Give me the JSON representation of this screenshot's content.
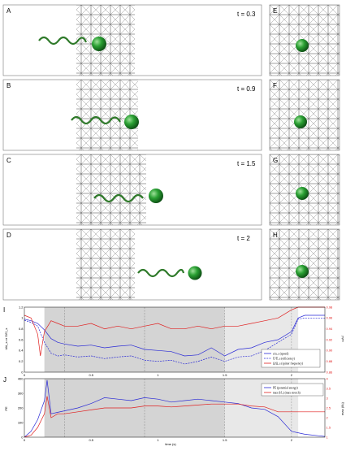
{
  "panels": [
    {
      "label": "A",
      "time": "t = 0.3",
      "head_offset": 0
    },
    {
      "label": "B",
      "time": "t = 0.9",
      "head_offset": 40
    },
    {
      "label": "C",
      "time": "t = 1.5",
      "head_offset": 80
    },
    {
      "label": "D",
      "time": "t = 2",
      "head_offset": 120
    }
  ],
  "zoom_panels": [
    {
      "label": "E"
    },
    {
      "label": "F"
    },
    {
      "label": "G"
    },
    {
      "label": "H"
    }
  ],
  "colors": {
    "sphere": "#1f8a2a",
    "tail": "#2f7a2a",
    "series_blue": "#2a2ad6",
    "series_red": "#e02020",
    "shade": "#d6d6d6",
    "grid": "#555555"
  },
  "chart_I": {
    "label": "I",
    "left_axis_label": "ū/ū_s or Ū/Ū_s",
    "right_axis_label": "ω/ω̄",
    "left_ticks": [
      "0",
      "0.2",
      "0.4",
      "0.6",
      "0.8",
      "1",
      "1.2"
    ],
    "right_ticks": [
      "0.86",
      "0.88",
      "0.90",
      "0.92",
      "0.94",
      "0.96",
      "0.98"
    ],
    "x_ticks": [
      "0",
      "0.5",
      "1",
      "1.5",
      "2"
    ],
    "legend": [
      "u/u_s (speed)",
      "Ū/Ū_s (efficiency)",
      "Ω/Ω_s (spinor frequency)"
    ]
  },
  "chart_J": {
    "label": "J",
    "left_axis_label": "PE",
    "right_axis_label": "max (l/l₀)",
    "left_ticks": [
      "0",
      "100",
      "200",
      "300",
      "400"
    ],
    "right_ticks": [
      "1",
      "1.5",
      "2",
      "2.5",
      "3",
      "3.5",
      "4"
    ],
    "x_ticks": [
      "0",
      "0.5",
      "1",
      "1.5",
      "2"
    ],
    "x_label": "time (s)",
    "legend": [
      "PE (potential energy)",
      "max (l/l₀) (max stretch)"
    ]
  },
  "chart_data": [
    {
      "type": "line",
      "title": "",
      "xlabel": "",
      "ylabel": "ū/ū_s or Ū/Ū_s",
      "xlim": [
        0,
        2.25
      ],
      "ylim": [
        0,
        1.2
      ],
      "y2lim": [
        0.86,
        0.98
      ],
      "shaded_intervals": [
        [
          0.15,
          1.5
        ],
        [
          1.5,
          2.05
        ]
      ],
      "series": [
        {
          "name": "u/u_s (speed)",
          "axis": "left",
          "style": "solid",
          "x": [
            0,
            0.05,
            0.1,
            0.15,
            0.2,
            0.25,
            0.3,
            0.4,
            0.5,
            0.6,
            0.7,
            0.8,
            0.9,
            1.0,
            1.1,
            1.2,
            1.3,
            1.4,
            1.5,
            1.6,
            1.7,
            1.8,
            1.9,
            2.0,
            2.05,
            2.1,
            2.2,
            2.25
          ],
          "y": [
            0.98,
            0.95,
            0.9,
            0.78,
            0.62,
            0.55,
            0.52,
            0.48,
            0.5,
            0.45,
            0.48,
            0.5,
            0.42,
            0.4,
            0.38,
            0.3,
            0.32,
            0.45,
            0.3,
            0.42,
            0.45,
            0.55,
            0.6,
            0.75,
            1.0,
            1.05,
            1.05,
            1.05
          ]
        },
        {
          "name": "Ū/Ū_s (efficiency)",
          "axis": "left",
          "style": "dashed",
          "x": [
            0,
            0.05,
            0.1,
            0.15,
            0.2,
            0.25,
            0.3,
            0.4,
            0.5,
            0.6,
            0.7,
            0.8,
            0.9,
            1.0,
            1.1,
            1.2,
            1.3,
            1.4,
            1.5,
            1.6,
            1.7,
            1.8,
            1.9,
            2.0,
            2.05,
            2.1,
            2.2,
            2.25
          ],
          "y": [
            0.96,
            0.92,
            0.85,
            0.55,
            0.35,
            0.3,
            0.32,
            0.28,
            0.3,
            0.25,
            0.28,
            0.3,
            0.22,
            0.2,
            0.22,
            0.15,
            0.2,
            0.28,
            0.2,
            0.28,
            0.3,
            0.4,
            0.55,
            0.7,
            0.98,
            1.0,
            1.0,
            1.0
          ]
        },
        {
          "name": "Ω/Ω_s (spinor frequency)",
          "axis": "right",
          "style": "solid",
          "x": [
            0,
            0.05,
            0.1,
            0.12,
            0.15,
            0.2,
            0.25,
            0.3,
            0.4,
            0.5,
            0.6,
            0.7,
            0.8,
            0.9,
            1.0,
            1.1,
            1.2,
            1.3,
            1.4,
            1.5,
            1.6,
            1.7,
            1.8,
            1.9,
            2.0,
            2.05,
            2.1,
            2.2,
            2.25
          ],
          "y": [
            0.965,
            0.96,
            0.93,
            0.89,
            0.935,
            0.955,
            0.95,
            0.945,
            0.945,
            0.95,
            0.94,
            0.945,
            0.94,
            0.945,
            0.95,
            0.94,
            0.94,
            0.945,
            0.94,
            0.945,
            0.945,
            0.95,
            0.955,
            0.96,
            0.975,
            0.98,
            0.98,
            0.98,
            0.98
          ]
        }
      ]
    },
    {
      "type": "line",
      "title": "",
      "xlabel": "time (s)",
      "ylabel": "PE",
      "xlim": [
        0,
        2.25
      ],
      "ylim": [
        0,
        400
      ],
      "y2lim": [
        1,
        4
      ],
      "shaded_intervals": [
        [
          0.15,
          1.5
        ],
        [
          1.5,
          2.05
        ]
      ],
      "series": [
        {
          "name": "PE (potential energy)",
          "axis": "left",
          "style": "solid",
          "x": [
            0,
            0.05,
            0.1,
            0.15,
            0.17,
            0.2,
            0.25,
            0.3,
            0.4,
            0.5,
            0.6,
            0.7,
            0.8,
            0.9,
            1.0,
            1.1,
            1.2,
            1.3,
            1.4,
            1.5,
            1.6,
            1.7,
            1.8,
            1.9,
            2.0,
            2.05,
            2.1,
            2.2,
            2.25
          ],
          "y": [
            0,
            40,
            120,
            250,
            390,
            160,
            170,
            180,
            200,
            230,
            270,
            260,
            250,
            270,
            260,
            240,
            250,
            260,
            250,
            240,
            230,
            200,
            190,
            140,
            40,
            30,
            20,
            10,
            5
          ]
        },
        {
          "name": "max (l/l₀) (max stretch)",
          "axis": "right",
          "style": "solid",
          "x": [
            0,
            0.05,
            0.1,
            0.15,
            0.17,
            0.2,
            0.25,
            0.3,
            0.4,
            0.5,
            0.6,
            0.7,
            0.8,
            0.9,
            1.0,
            1.1,
            1.2,
            1.3,
            1.4,
            1.5,
            1.6,
            1.7,
            1.8,
            1.9,
            2.0,
            2.05,
            2.1,
            2.2,
            2.25
          ],
          "y": [
            1.0,
            1.1,
            1.5,
            2.2,
            3.1,
            2.0,
            2.2,
            2.2,
            2.3,
            2.4,
            2.5,
            2.5,
            2.5,
            2.6,
            2.6,
            2.55,
            2.6,
            2.65,
            2.7,
            2.7,
            2.7,
            2.6,
            2.55,
            2.3,
            2.3,
            2.3,
            2.3,
            2.3,
            2.3
          ]
        }
      ]
    }
  ]
}
